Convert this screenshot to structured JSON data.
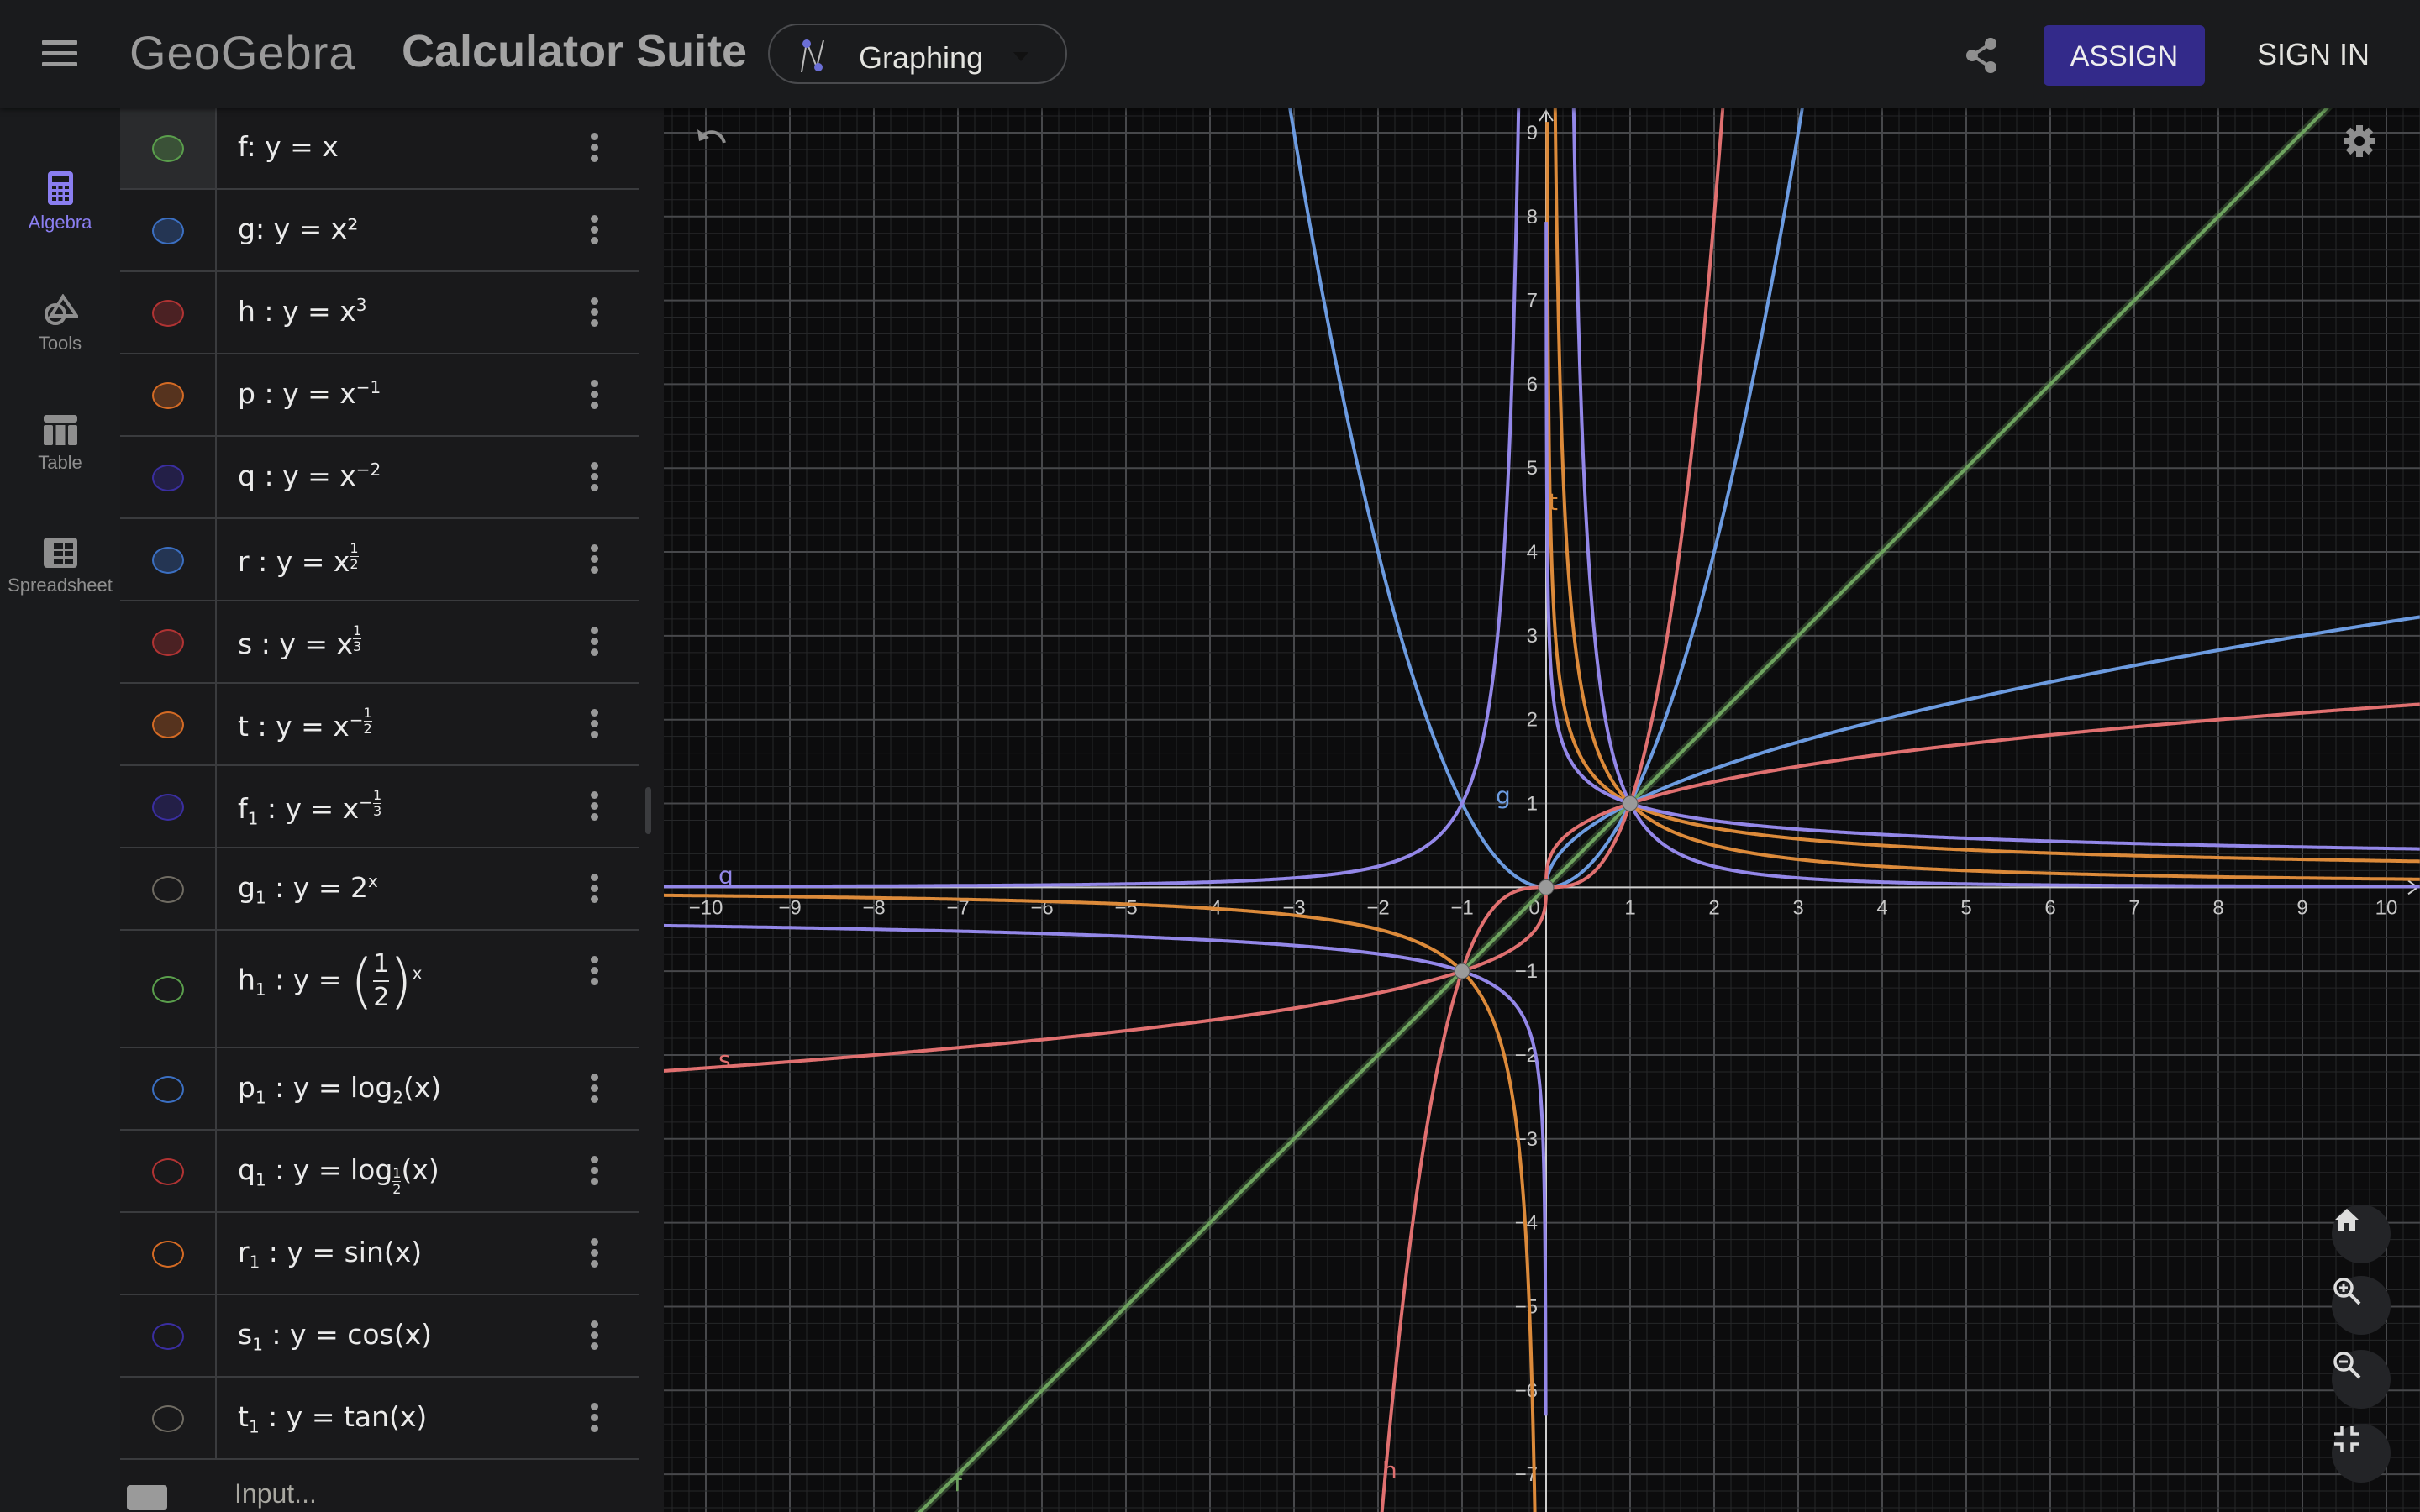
{
  "header": {
    "logo_text": "GeoGebra",
    "suite_title": "Calculator Suite",
    "app_selector": {
      "label": "Graphing",
      "icon": "graphing-icon"
    },
    "share_icon": "share-icon",
    "assign_label": "ASSIGN",
    "signin_label": "SIGN IN",
    "accent_color": "#332a8a"
  },
  "rail": {
    "items": [
      {
        "label": "Algebra",
        "icon": "calculator-icon",
        "active": true
      },
      {
        "label": "Tools",
        "icon": "tools-icon",
        "active": false
      },
      {
        "label": "Table",
        "icon": "table-icon",
        "active": false
      },
      {
        "label": "Spreadsheet",
        "icon": "spreadsheet-icon",
        "active": false
      }
    ],
    "active_color": "#8a7ef0"
  },
  "algebra": {
    "rows": [
      {
        "name": "f",
        "sub": "",
        "sep": ": ",
        "color": "#5a9e4c",
        "visible": true,
        "parts": [
          {
            "t": "y = x"
          }
        ]
      },
      {
        "name": "g",
        "sub": "",
        "sep": ": ",
        "color": "#3b6fc2",
        "visible": true,
        "parts": [
          {
            "t": "y = x²"
          }
        ]
      },
      {
        "name": "h",
        "sub": "",
        "sep": " : ",
        "color": "#b03333",
        "visible": true,
        "parts": [
          {
            "t": "y = x"
          },
          {
            "sup": "3"
          }
        ]
      },
      {
        "name": "p",
        "sub": "",
        "sep": " : ",
        "color": "#d36a24",
        "visible": true,
        "parts": [
          {
            "t": "y = x"
          },
          {
            "sup": "−1"
          }
        ]
      },
      {
        "name": "q",
        "sub": "",
        "sep": " : ",
        "color": "#3a2ea0",
        "visible": true,
        "parts": [
          {
            "t": "y = x"
          },
          {
            "sup": "−2"
          }
        ]
      },
      {
        "name": "r",
        "sub": "",
        "sep": " : ",
        "color": "#3b6fc2",
        "visible": true,
        "parts": [
          {
            "t": "y = x"
          },
          {
            "supfrac": [
              "",
              "1",
              "2"
            ]
          }
        ]
      },
      {
        "name": "s",
        "sub": "",
        "sep": " : ",
        "color": "#b03333",
        "visible": true,
        "parts": [
          {
            "t": "y = x"
          },
          {
            "supfrac": [
              "",
              "1",
              "3"
            ]
          }
        ]
      },
      {
        "name": "t",
        "sub": "",
        "sep": " : ",
        "color": "#d36a24",
        "visible": true,
        "parts": [
          {
            "t": "y = x"
          },
          {
            "supfrac": [
              "−",
              "1",
              "2"
            ]
          }
        ]
      },
      {
        "name": "f",
        "sub": "1",
        "sep": " : ",
        "color": "#3a2ea0",
        "visible": true,
        "parts": [
          {
            "t": "y = x"
          },
          {
            "supfrac": [
              "−",
              "1",
              "3"
            ]
          }
        ]
      },
      {
        "name": "g",
        "sub": "1",
        "sep": " : ",
        "color": "#6f6b62",
        "visible": false,
        "parts": [
          {
            "t": "y = 2"
          },
          {
            "sup": "x"
          }
        ]
      },
      {
        "name": "h",
        "sub": "1",
        "sep": " : ",
        "color": "#5a9e4c",
        "visible": false,
        "parts": [
          {
            "t": "y = "
          },
          {
            "bigfrac": [
              "1",
              "2"
            ]
          },
          {
            "sup": "x"
          }
        ]
      },
      {
        "name": "p",
        "sub": "1",
        "sep": " : ",
        "color": "#3b6fc2",
        "visible": false,
        "parts": [
          {
            "t": "y = log"
          },
          {
            "sub": "2"
          },
          {
            "t": "(x)"
          }
        ]
      },
      {
        "name": "q",
        "sub": "1",
        "sep": " : ",
        "color": "#b03333",
        "visible": false,
        "parts": [
          {
            "t": "y = log"
          },
          {
            "subfrac": [
              "1",
              "2"
            ]
          },
          {
            "t": "(x)"
          }
        ]
      },
      {
        "name": "r",
        "sub": "1",
        "sep": " : ",
        "color": "#d36a24",
        "visible": false,
        "parts": [
          {
            "t": "y = sin(x)"
          }
        ]
      },
      {
        "name": "s",
        "sub": "1",
        "sep": " : ",
        "color": "#3a2ea0",
        "visible": false,
        "parts": [
          {
            "t": "y = cos(x)"
          }
        ]
      },
      {
        "name": "t",
        "sub": "1",
        "sep": " : ",
        "color": "#6f6b62",
        "visible": false,
        "parts": [
          {
            "t": "y = tan(x)"
          }
        ]
      }
    ],
    "input_placeholder": "Input..."
  },
  "graph": {
    "x_range": [
      -10.5,
      10.4
    ],
    "y_range": [
      -7.45,
      9.3
    ],
    "grid": true,
    "x_ticks": [
      -10,
      -9,
      -8,
      -7,
      -6,
      -5,
      -4,
      -3,
      -2,
      -1,
      0,
      1,
      2,
      3,
      4,
      5,
      6,
      7,
      8,
      9,
      10
    ],
    "y_ticks": [
      -7,
      -6,
      -5,
      -4,
      -3,
      -2,
      -1,
      1,
      2,
      3,
      4,
      5,
      6,
      7,
      8,
      9
    ],
    "curve_colors": {
      "green": "#6ea35f",
      "blue": "#6c9be0",
      "red": "#e07070",
      "orange": "#dc8a3a",
      "purple": "#9387e8"
    },
    "curve_labels": [
      "f",
      "g",
      "h",
      "s",
      "t",
      "q"
    ],
    "points": [
      [
        0,
        0
      ],
      [
        1,
        1
      ],
      [
        -1,
        -1
      ]
    ],
    "controls": [
      "undo-icon",
      "settings-icon",
      "home-icon",
      "zoom-in-icon",
      "zoom-out-icon",
      "exit-fullscreen-icon"
    ]
  }
}
